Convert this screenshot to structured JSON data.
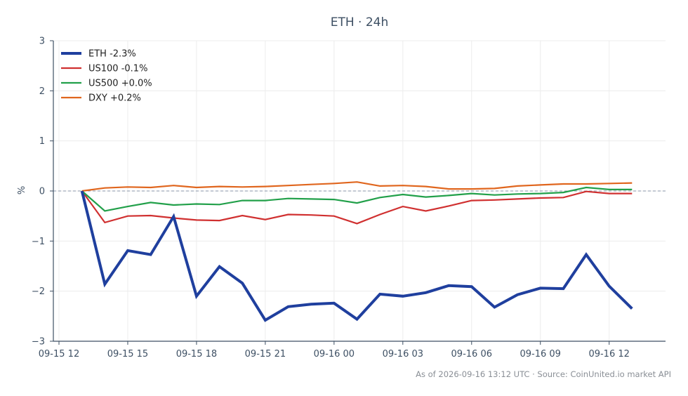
{
  "chart_data": {
    "type": "line",
    "title": "ETH · 24h",
    "xlabel": "",
    "ylabel": "%",
    "ylim": [
      -3,
      3
    ],
    "yticks": [
      3,
      2,
      1,
      0,
      -1,
      -2,
      -3
    ],
    "ytick_labels": [
      "3",
      "2",
      "1",
      "0",
      "−1",
      "−2",
      "−3"
    ],
    "xlim": [
      "2026-09-15 12:00",
      "2026-09-16 14:00"
    ],
    "xticks": [
      "2026-09-15 12:00",
      "2026-09-15 15:00",
      "2026-09-15 18:00",
      "2026-09-15 21:00",
      "2026-09-16 00:00",
      "2026-09-16 03:00",
      "2026-09-16 06:00",
      "2026-09-16 09:00",
      "2026-09-16 12:00"
    ],
    "xtick_labels": [
      "09-15 12",
      "09-15 15",
      "09-15 18",
      "09-15 21",
      "09-16 00",
      "09-16 03",
      "09-16 06",
      "09-16 09",
      "09-16 12"
    ],
    "x": [
      "2026-09-15 13:00",
      "2026-09-15 14:00",
      "2026-09-15 15:00",
      "2026-09-15 16:00",
      "2026-09-15 17:00",
      "2026-09-15 18:00",
      "2026-09-15 19:00",
      "2026-09-15 20:00",
      "2026-09-15 21:00",
      "2026-09-15 22:00",
      "2026-09-15 23:00",
      "2026-09-16 00:00",
      "2026-09-16 01:00",
      "2026-09-16 02:00",
      "2026-09-16 03:00",
      "2026-09-16 04:00",
      "2026-09-16 05:00",
      "2026-09-16 06:00",
      "2026-09-16 07:00",
      "2026-09-16 08:00",
      "2026-09-16 09:00",
      "2026-09-16 10:00",
      "2026-09-16 11:00",
      "2026-09-16 12:00",
      "2026-09-16 13:00"
    ],
    "zero_line": 0,
    "grid": true,
    "legend_position": "top-left",
    "series": [
      {
        "name": "ETH -2.3%",
        "color": "#1f3f9e",
        "width": "bold",
        "values": [
          0,
          -1.86,
          -1.19,
          -1.27,
          -0.51,
          -2.1,
          -1.51,
          -1.84,
          -2.58,
          -2.31,
          -2.26,
          -2.24,
          -2.56,
          -2.06,
          -2.1,
          -2.03,
          -1.89,
          -1.91,
          -2.32,
          -2.07,
          -1.94,
          -1.95,
          -1.27,
          -1.9,
          -2.35
        ]
      },
      {
        "name": "US100 -0.1%",
        "color": "#d03030",
        "values": [
          0,
          -0.63,
          -0.5,
          -0.49,
          -0.54,
          -0.58,
          -0.59,
          -0.49,
          -0.57,
          -0.47,
          -0.48,
          -0.5,
          -0.65,
          -0.47,
          -0.31,
          -0.4,
          -0.3,
          -0.19,
          -0.18,
          -0.16,
          -0.14,
          -0.13,
          -0.01,
          -0.05,
          -0.05
        ]
      },
      {
        "name": "US500 +0.0%",
        "color": "#22a04a",
        "values": [
          0,
          -0.4,
          -0.31,
          -0.23,
          -0.28,
          -0.26,
          -0.27,
          -0.19,
          -0.19,
          -0.15,
          -0.16,
          -0.17,
          -0.24,
          -0.13,
          -0.07,
          -0.12,
          -0.09,
          -0.05,
          -0.08,
          -0.06,
          -0.05,
          -0.03,
          0.07,
          0.03,
          0.03
        ]
      },
      {
        "name": "DXY +0.2%",
        "color": "#e0661e",
        "values": [
          0,
          0.06,
          0.08,
          0.07,
          0.11,
          0.07,
          0.09,
          0.08,
          0.09,
          0.11,
          0.13,
          0.15,
          0.18,
          0.1,
          0.11,
          0.09,
          0.04,
          0.04,
          0.05,
          0.1,
          0.12,
          0.14,
          0.14,
          0.15,
          0.16
        ]
      }
    ]
  },
  "footer": "As of 2026-09-16 13:12 UTC · Source: CoinUnited.io market API"
}
